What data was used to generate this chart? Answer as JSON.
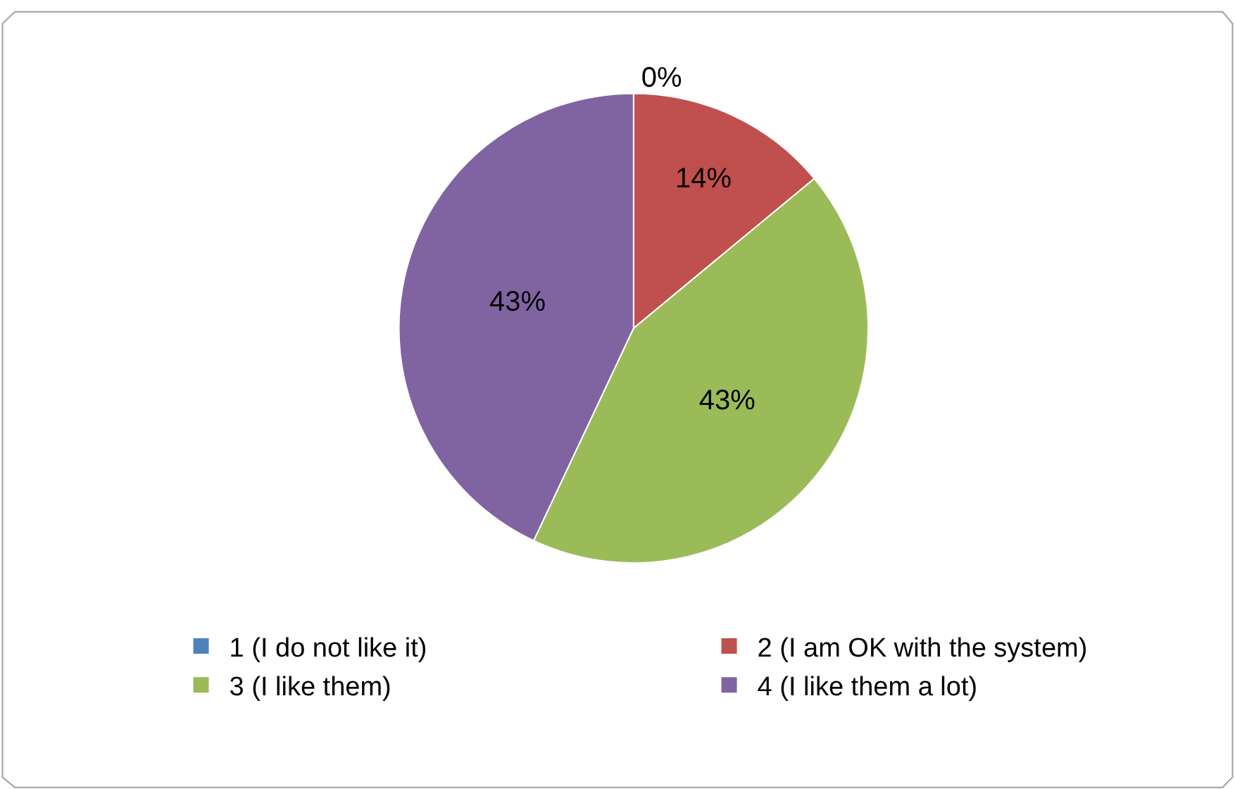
{
  "chart_data": {
    "type": "pie",
    "categories": [
      "1 (I do not like it)",
      "2 (I am OK with the system)",
      "3 (I like them)",
      "4 (I like them a lot)"
    ],
    "values": [
      0,
      14,
      43,
      43
    ],
    "colors": [
      "#4f81bd",
      "#c0504d",
      "#9bbb59",
      "#8064a2"
    ],
    "value_labels": [
      "0%",
      "14%",
      "43%",
      "43%"
    ],
    "legend": "bottom"
  }
}
